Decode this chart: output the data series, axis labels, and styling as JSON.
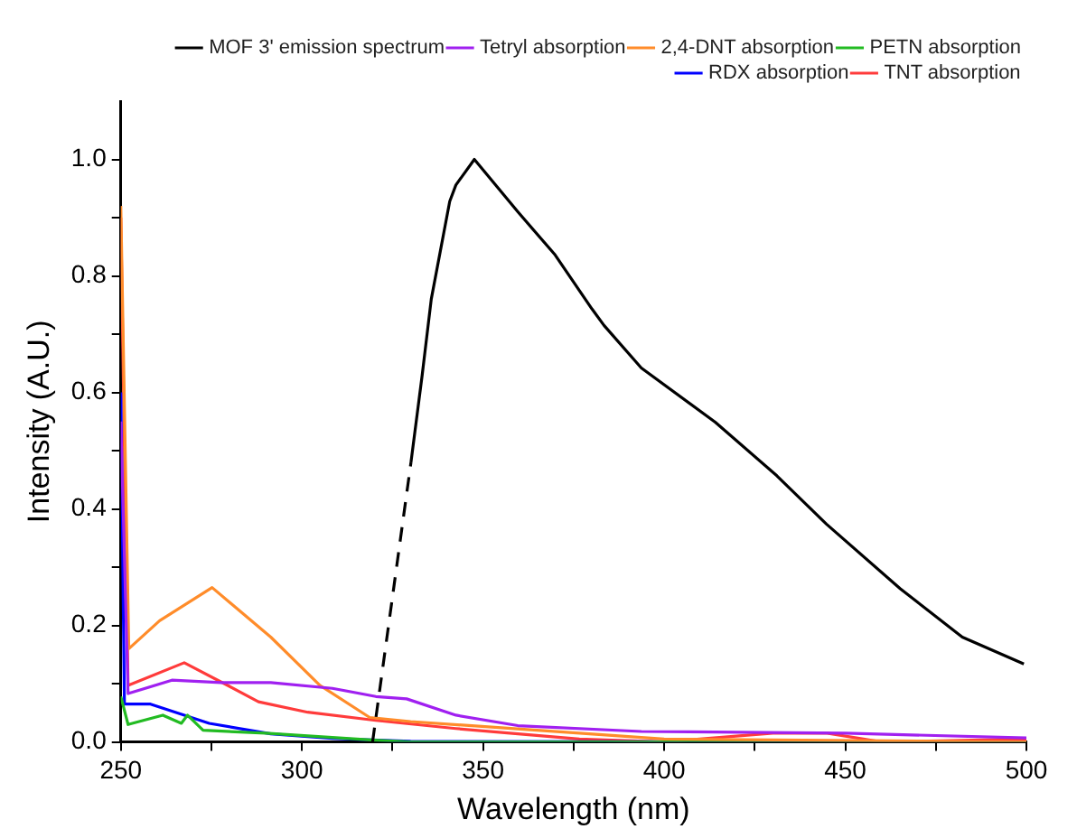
{
  "chart_data": {
    "type": "line",
    "xlabel": "Wavelength (nm)",
    "ylabel": "Intensity (A.U.)",
    "xlim": [
      250,
      500
    ],
    "ylim": [
      0,
      1.1
    ],
    "xticks": [
      250,
      {
        "value": 275,
        "label": null
      },
      300,
      {
        "value": 325,
        "label": null
      },
      350,
      {
        "value": 375,
        "label": null
      },
      400,
      {
        "value": 425,
        "label": null
      },
      450,
      {
        "value": 475,
        "label": null
      },
      500
    ],
    "yticks": [
      {
        "value": 0,
        "label": "0.0"
      },
      {
        "value": 0.1,
        "label": null
      },
      0.2,
      {
        "value": 0.3,
        "label": null
      },
      0.4,
      {
        "value": 0.5,
        "label": null
      },
      0.6,
      {
        "value": 0.7,
        "label": null
      },
      0.8,
      {
        "value": 0.9,
        "label": null
      },
      {
        "value": 1,
        "label": "1.0"
      }
    ],
    "grid": false,
    "legend": "top right",
    "marker": "none",
    "line_style": "solid",
    "series": [
      {
        "name": "MOF 3' emission spectrum",
        "color": "#000000",
        "x": [
          330.1,
          333.2,
          335.7,
          340.8,
          342.5,
          347.6,
          359.6,
          369.9,
          380.1,
          383.4,
          393.7,
          414.1,
          431.1,
          444.8,
          465.2,
          482.3,
          499.3
        ],
        "values": [
          0.48,
          0.63,
          0.76,
          0.928,
          0.956,
          1.0,
          0.91,
          0.836,
          0.743,
          0.715,
          0.642,
          0.549,
          0.457,
          0.374,
          0.263,
          0.18,
          0.134
        ]
      },
      {
        "color": "#000000",
        "line_style": "dashed",
        "x": [
          319.5,
          330.1
        ],
        "values": [
          0,
          0.48
        ]
      },
      {
        "name": "Tetryl absorption",
        "color": "#a020f0",
        "x": [
          250,
          252,
          264.1,
          277.7,
          291.4,
          308.4,
          320.4,
          328.9,
          342.5,
          359.6,
          393.7,
          450,
          500
        ],
        "values": [
          0.55,
          0.083,
          0.106,
          0.102,
          0.102,
          0.092,
          0.078,
          0.074,
          0.046,
          0.028,
          0.018,
          0.015,
          0.007
        ]
      },
      {
        "name": "2,4-DNT absorption",
        "color": "#ff8c2a",
        "x": [
          250,
          252.2,
          260.7,
          275.2,
          291.4,
          305,
          318.7,
          330,
          400,
          500
        ],
        "values": [
          0.92,
          0.16,
          0.208,
          0.265,
          0.18,
          0.097,
          0.042,
          0.035,
          0.005,
          0
        ]
      },
      {
        "name": "PETN absorption",
        "color": "#22bb22",
        "x": [
          250,
          252,
          261.6,
          266.7,
          268.4,
          272.7,
          290,
          320,
          330,
          500
        ],
        "values": [
          0.078,
          0.03,
          0.046,
          0.032,
          0.046,
          0.02,
          0.015,
          0.003,
          0,
          0
        ]
      },
      {
        "name": "RDX absorption",
        "color": "#0000ff",
        "x": [
          250,
          251,
          258.2,
          274.4,
          291.4,
          308.4,
          330,
          500
        ],
        "values": [
          0.6,
          0.065,
          0.065,
          0.032,
          0.014,
          0.006,
          0.001,
          0
        ]
      },
      {
        "name": "TNT absorption",
        "color": "#ff3b3b",
        "x": [
          250,
          252,
          267.5,
          279.5,
          288,
          301.6,
          320.4,
          342.5,
          376.6,
          400,
          430,
          445,
          460,
          500
        ],
        "values": [
          0.9,
          0.097,
          0.136,
          0.097,
          0.069,
          0.051,
          0.037,
          0.023,
          0.005,
          0,
          0.015,
          0.015,
          0,
          0.005
        ]
      }
    ]
  }
}
